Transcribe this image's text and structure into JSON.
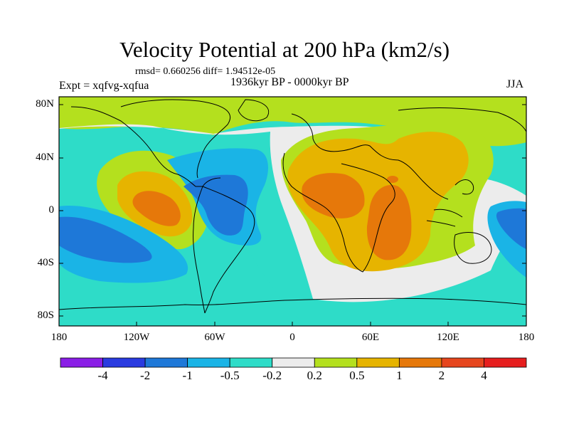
{
  "title": "Velocity Potential at 200 hPa (km2/s)",
  "stats": "rmsd= 0.660256 diff= 1.94512e-05",
  "expt": "Expt = xqfvg-xqfua",
  "period": "1936kyr BP - 0000kyr BP",
  "season": "JJA",
  "lat_labels": [
    "80N",
    "40N",
    "0",
    "40S",
    "80S"
  ],
  "lon_labels": [
    "180",
    "120W",
    "60W",
    "0",
    "60E",
    "120E",
    "180"
  ],
  "colorbar": {
    "labels": [
      "-4",
      "-2",
      "-1",
      "-0.5",
      "-0.2",
      "0.2",
      "0.5",
      "1",
      "2",
      "4"
    ],
    "colors": [
      "#8a1ee6",
      "#2a3be0",
      "#1e78d8",
      "#1ab4e6",
      "#2edcc8",
      "#ececec",
      "#b4e01e",
      "#e6b400",
      "#e6780a",
      "#e6461e",
      "#e61e1e"
    ]
  },
  "palette": {
    "cyan": "#1ab4e6",
    "teal": "#2edcc8",
    "white": "#ececec",
    "green": "#b4e01e",
    "gold": "#e6b400",
    "orange": "#e6780a",
    "blue": "#1e78d8"
  }
}
